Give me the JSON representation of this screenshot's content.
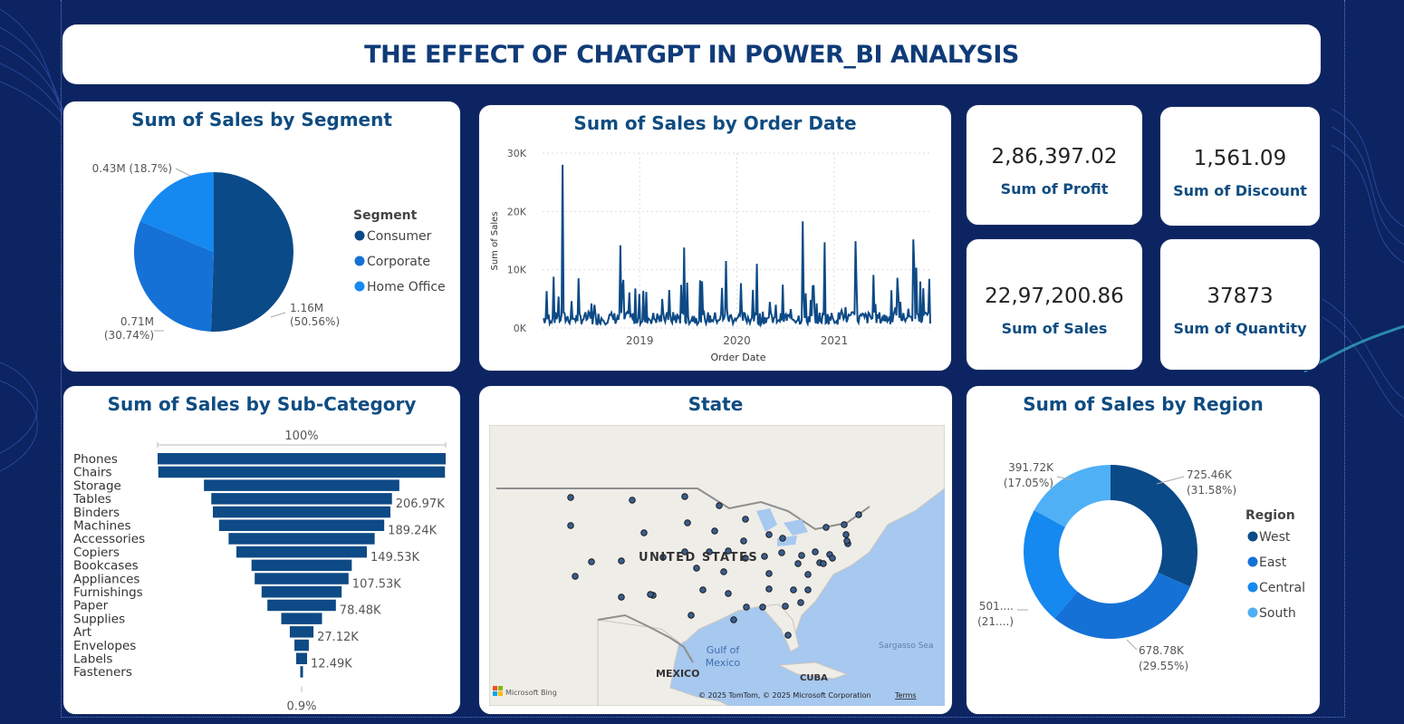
{
  "dashboard": {
    "title": "THE EFFECT OF CHATGPT IN POWER_BI ANALYSIS"
  },
  "colors": {
    "background": "#0c2461",
    "card": "#ffffff",
    "title_text": "#0f3b78",
    "west_consumer": "#0b4a88",
    "east_corporate": "#1571d6",
    "central_homeoffice": "#1589f0",
    "south": "#4fb0f6",
    "bar": "#0d4a86"
  },
  "kpis": {
    "profit": {
      "value": "2,86,397.02",
      "label": "Sum of Profit"
    },
    "discount": {
      "value": "1,561.09",
      "label": "Sum of Discount"
    },
    "sales": {
      "value": "22,97,200.86",
      "label": "Sum of Sales"
    },
    "quantity": {
      "value": "37873",
      "label": "Sum of Quantity"
    }
  },
  "map": {
    "title": "State",
    "country_label": "UNITED STATES",
    "labels": {
      "gulf": "Gulf of\nMexico",
      "mexico": "MEXICO",
      "cuba": "CUBA",
      "sargasso": "Sargasso Sea"
    },
    "attribution": "© 2025 TomTom, © 2025 Microsoft Corporation",
    "terms": "Terms",
    "bing": "Microsoft Bing"
  },
  "chart_data": [
    {
      "type": "pie",
      "title": "Sum of Sales by Segment",
      "legend_title": "Segment",
      "legend_position": "right",
      "slices": [
        {
          "name": "Consumer",
          "value": 1.16,
          "percent": 50.56,
          "label": "1.16M (50.56%)",
          "color": "#0b4a88"
        },
        {
          "name": "Corporate",
          "value": 0.71,
          "percent": 30.74,
          "label": "0.71M (30.74%)",
          "color": "#1571d6"
        },
        {
          "name": "Home Office",
          "value": 0.43,
          "percent": 18.7,
          "label": "0.43M (18.7%)",
          "color": "#1589f0"
        }
      ]
    },
    {
      "type": "line",
      "title": "Sum of Sales by Order Date",
      "xlabel": "Order Date",
      "ylabel": "Sum of Sales",
      "yticks": [
        "0K",
        "10K",
        "20K",
        "30K"
      ],
      "ylim": [
        0,
        30000
      ],
      "xticks": [
        "2019",
        "2020",
        "2021"
      ],
      "x_range": [
        "2018-01-01",
        "2021-12-31"
      ],
      "grid": true,
      "peaks": [
        {
          "date": "2018-03-18",
          "value": 28000
        },
        {
          "date": "2018-10-20",
          "value": 14200
        },
        {
          "date": "2019-06-15",
          "value": 13800
        },
        {
          "date": "2019-11-20",
          "value": 11500
        },
        {
          "date": "2020-03-15",
          "value": 11000
        },
        {
          "date": "2020-09-05",
          "value": 18300
        },
        {
          "date": "2020-11-25",
          "value": 14700
        },
        {
          "date": "2021-03-20",
          "value": 14900
        },
        {
          "date": "2021-10-25",
          "value": 15200
        }
      ]
    },
    {
      "type": "bar",
      "subtype": "funnel",
      "title": "Sum of Sales by Sub-Category",
      "top_label": "100%",
      "bottom_label": "0.9%",
      "categories": [
        "Phones",
        "Chairs",
        "Storage",
        "Tables",
        "Binders",
        "Machines",
        "Accessories",
        "Copiers",
        "Bookcases",
        "Appliances",
        "Furnishings",
        "Paper",
        "Supplies",
        "Art",
        "Envelopes",
        "Labels",
        "Fasteners"
      ],
      "values": [
        330010,
        328450,
        223840,
        206970,
        203410,
        189240,
        167380,
        149530,
        114880,
        107530,
        91710,
        78480,
        46670,
        27120,
        16480,
        12490,
        3020
      ],
      "data_labels": [
        "",
        "",
        "",
        "206.97K",
        "",
        "189.24K",
        "",
        "149.53K",
        "",
        "107.53K",
        "",
        "78.48K",
        "",
        "27.12K",
        "",
        "12.49K",
        ""
      ]
    },
    {
      "type": "pie",
      "subtype": "donut",
      "title": "Sum of Sales by Region",
      "legend_title": "Region",
      "legend_position": "right",
      "slices": [
        {
          "name": "West",
          "value": 725.46,
          "percent": 31.58,
          "label": "725.46K\n(31.58%)",
          "color": "#0b4a88"
        },
        {
          "name": "East",
          "value": 678.78,
          "percent": 29.55,
          "label": "678.78K\n(29.55%)",
          "color": "#1571d6"
        },
        {
          "name": "Central",
          "value": 501.24,
          "percent": 21.82,
          "label": "501....\n(21....)",
          "color": "#1589f0"
        },
        {
          "name": "South",
          "value": 391.72,
          "percent": 17.05,
          "label": "391.72K\n(17.05%)",
          "color": "#4fb0f6"
        }
      ]
    }
  ]
}
